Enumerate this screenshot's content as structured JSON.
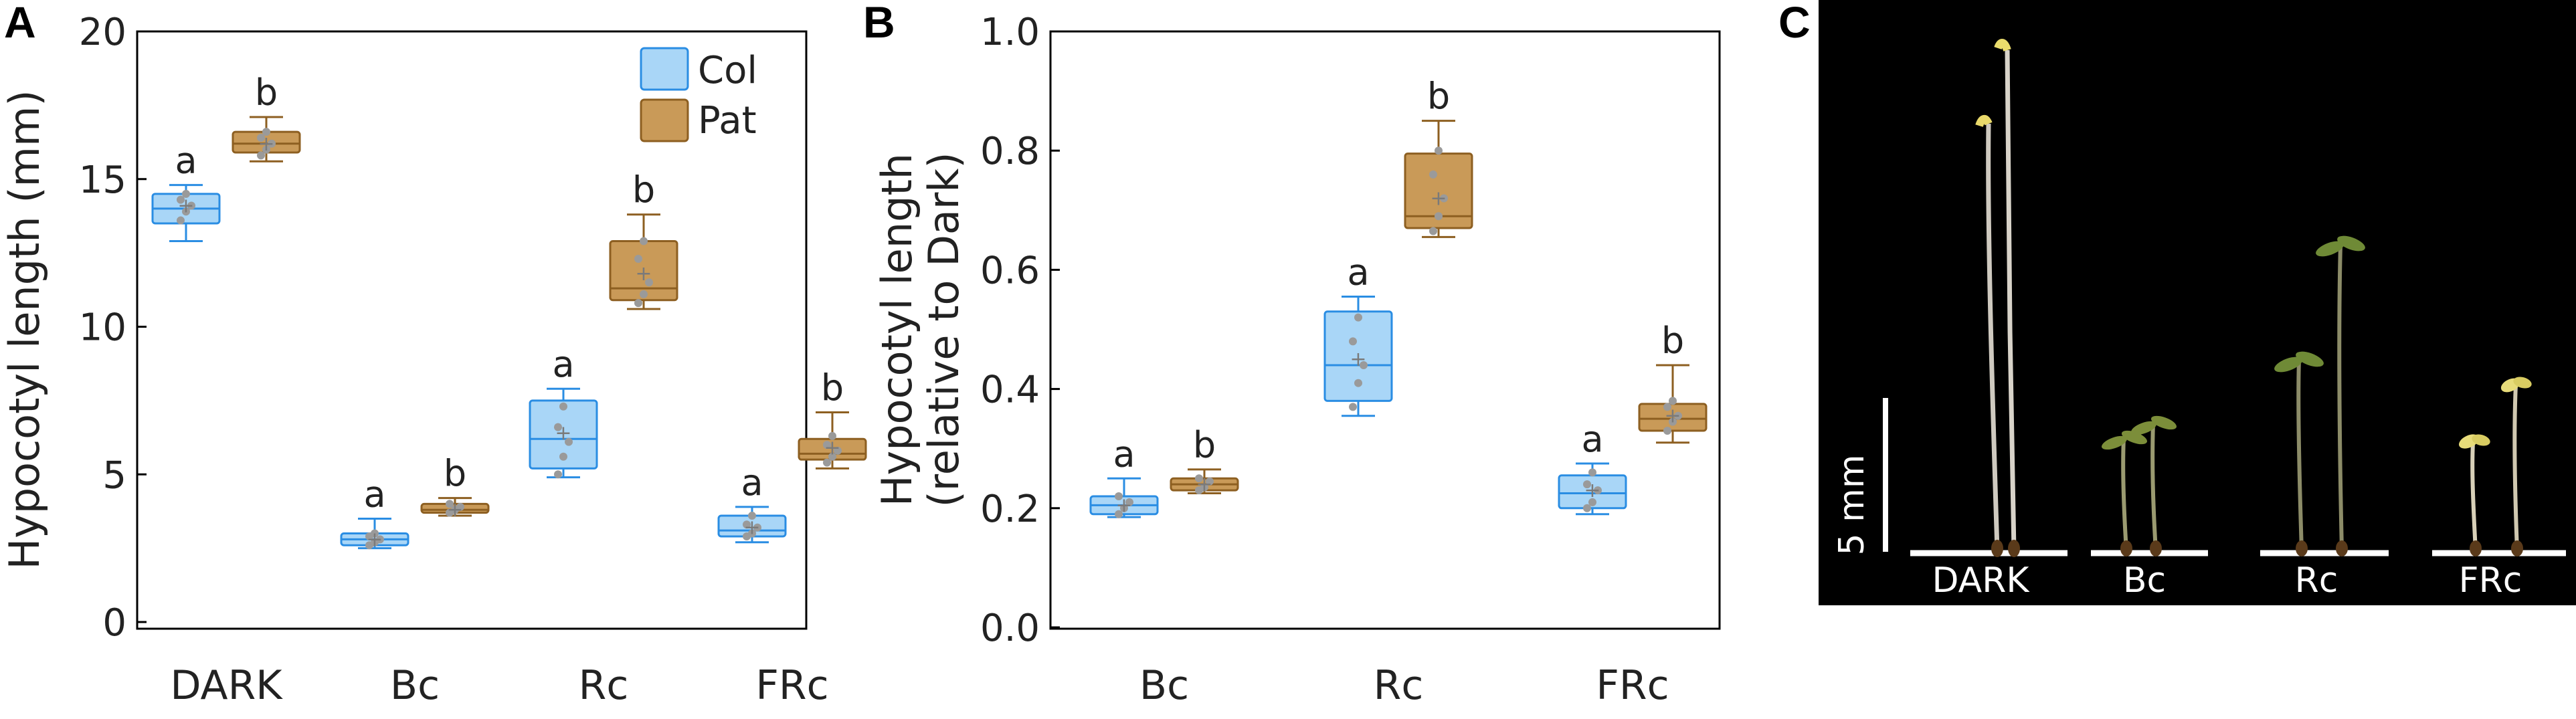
{
  "panels": {
    "A": "A",
    "B": "B",
    "C": "C"
  },
  "colors": {
    "col_fill": "#a9d6f7",
    "col_stroke": "#2a8de3",
    "pat_fill": "#c99a58",
    "pat_stroke": "#8d5f21",
    "point": "#9a9a9a",
    "photo_bg": "#000000",
    "photo_label": "#ffffff"
  },
  "chart_data": [
    {
      "panel": "A",
      "type": "box",
      "title": "",
      "xlabel": "",
      "ylabel": "Hypocotyl length (mm)",
      "ylim": [
        0,
        20
      ],
      "yticks": [
        0,
        5,
        10,
        15,
        20
      ],
      "ytick_labels": [
        "0",
        "5",
        "10",
        "15",
        "20"
      ],
      "categories": [
        "DARK",
        "Bc",
        "Rc",
        "FRc"
      ],
      "legend": {
        "placement": "top-right",
        "entries": [
          "Col",
          "Pat"
        ]
      },
      "grid": false,
      "series": [
        {
          "name": "Col",
          "color": "#2a8de3",
          "boxes": [
            {
              "whisker_low": 12.9,
              "q1": 13.5,
              "median": 14.0,
              "q3": 14.5,
              "whisker_high": 14.8,
              "mean": 14.1,
              "points": [
                13.6,
                13.9,
                14.1,
                14.3,
                14.5
              ],
              "label": "a"
            },
            {
              "whisker_low": 2.5,
              "q1": 2.6,
              "median": 2.8,
              "q3": 3.0,
              "whisker_high": 3.5,
              "mean": 2.8,
              "points": [
                2.6,
                2.7,
                2.8,
                2.9,
                3.0
              ],
              "label": "a"
            },
            {
              "whisker_low": 4.9,
              "q1": 5.2,
              "median": 6.2,
              "q3": 7.5,
              "whisker_high": 7.9,
              "mean": 6.4,
              "points": [
                5.0,
                5.6,
                6.1,
                6.6,
                7.3
              ],
              "label": "a"
            },
            {
              "whisker_low": 2.7,
              "q1": 2.9,
              "median": 3.1,
              "q3": 3.6,
              "whisker_high": 3.9,
              "mean": 3.2,
              "points": [
                2.9,
                3.0,
                3.2,
                3.3,
                3.6
              ],
              "label": "a"
            }
          ]
        },
        {
          "name": "Pat",
          "color": "#8d5f21",
          "boxes": [
            {
              "whisker_low": 15.6,
              "q1": 15.9,
              "median": 16.2,
              "q3": 16.6,
              "whisker_high": 17.1,
              "mean": 16.2,
              "points": [
                15.8,
                16.0,
                16.2,
                16.4,
                16.6
              ],
              "label": "b"
            },
            {
              "whisker_low": 3.6,
              "q1": 3.7,
              "median": 3.8,
              "q3": 4.0,
              "whisker_high": 4.2,
              "mean": 3.8,
              "points": [
                3.7,
                3.8,
                3.9,
                4.0
              ],
              "label": "b"
            },
            {
              "whisker_low": 10.6,
              "q1": 10.9,
              "median": 11.3,
              "q3": 12.9,
              "whisker_high": 13.8,
              "mean": 11.8,
              "points": [
                10.8,
                11.1,
                11.5,
                12.3,
                12.9
              ],
              "label": "b"
            },
            {
              "whisker_low": 5.2,
              "q1": 5.5,
              "median": 5.7,
              "q3": 6.2,
              "whisker_high": 7.1,
              "mean": 5.9,
              "points": [
                5.4,
                5.6,
                5.8,
                6.0,
                6.3
              ],
              "label": "b"
            }
          ]
        }
      ]
    },
    {
      "panel": "B",
      "type": "box",
      "title": "",
      "xlabel": "",
      "ylabel": "Hypocotyl length",
      "ylabel2": "(relative to Dark)",
      "ylim": [
        0,
        1
      ],
      "yticks": [
        0,
        0.2,
        0.4,
        0.6,
        0.8,
        1.0
      ],
      "ytick_labels": [
        "0.0",
        "0.2",
        "0.4",
        "0.6",
        "0.8",
        "1.0"
      ],
      "categories": [
        "Bc",
        "Rc",
        "FRc"
      ],
      "grid": false,
      "series": [
        {
          "name": "Col",
          "color": "#2a8de3",
          "boxes": [
            {
              "whisker_low": 0.185,
              "q1": 0.19,
              "median": 0.205,
              "q3": 0.22,
              "whisker_high": 0.25,
              "mean": 0.205,
              "points": [
                0.19,
                0.2,
                0.21,
                0.22
              ],
              "label": "a"
            },
            {
              "whisker_low": 0.355,
              "q1": 0.38,
              "median": 0.44,
              "q3": 0.53,
              "whisker_high": 0.555,
              "mean": 0.45,
              "points": [
                0.37,
                0.41,
                0.44,
                0.48,
                0.52
              ],
              "label": "a"
            },
            {
              "whisker_low": 0.19,
              "q1": 0.2,
              "median": 0.225,
              "q3": 0.255,
              "whisker_high": 0.275,
              "mean": 0.23,
              "points": [
                0.2,
                0.21,
                0.23,
                0.24,
                0.26
              ],
              "label": "a"
            }
          ]
        },
        {
          "name": "Pat",
          "color": "#8d5f21",
          "boxes": [
            {
              "whisker_low": 0.225,
              "q1": 0.23,
              "median": 0.24,
              "q3": 0.25,
              "whisker_high": 0.265,
              "mean": 0.24,
              "points": [
                0.23,
                0.235,
                0.245,
                0.25
              ],
              "label": "b"
            },
            {
              "whisker_low": 0.655,
              "q1": 0.67,
              "median": 0.69,
              "q3": 0.795,
              "whisker_high": 0.85,
              "mean": 0.72,
              "points": [
                0.665,
                0.69,
                0.72,
                0.76,
                0.8
              ],
              "label": "b"
            },
            {
              "whisker_low": 0.31,
              "q1": 0.33,
              "median": 0.35,
              "q3": 0.375,
              "whisker_high": 0.44,
              "mean": 0.355,
              "points": [
                0.33,
                0.345,
                0.355,
                0.37,
                0.38
              ],
              "label": "b"
            }
          ]
        }
      ]
    }
  ],
  "photo": {
    "scale_bar_label": "5 mm",
    "labels": [
      "DARK",
      "Bc",
      "Rc",
      "FRc"
    ]
  }
}
